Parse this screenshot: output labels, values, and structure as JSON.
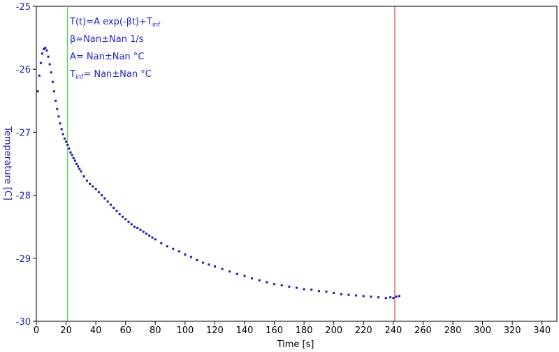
{
  "chart_data": {
    "type": "scatter",
    "title": "",
    "xlabel": "Time [s]",
    "ylabel": "Temperature [C]",
    "xlim": [
      0,
      350
    ],
    "ylim": [
      -30,
      -25
    ],
    "x_ticks": [
      0,
      20,
      40,
      60,
      80,
      100,
      120,
      140,
      160,
      180,
      200,
      220,
      240,
      260,
      280,
      300,
      320,
      340
    ],
    "y_ticks": [
      -25,
      -26,
      -27,
      -28,
      -29,
      -30
    ],
    "grid": false,
    "legend": "none",
    "series": [
      {
        "color": "#1a1aa8",
        "x": [
          1,
          2,
          3,
          4,
          5,
          6,
          7,
          8,
          9,
          10,
          11,
          12,
          13,
          14,
          15,
          16,
          17,
          18,
          19,
          20,
          21,
          22,
          23,
          24,
          25,
          26,
          27,
          28,
          29,
          30,
          32,
          34,
          36,
          38,
          40,
          42,
          44,
          46,
          48,
          50,
          52,
          54,
          56,
          58,
          60,
          62,
          64,
          66,
          68,
          70,
          72,
          74,
          76,
          78,
          80,
          84,
          88,
          92,
          96,
          100,
          104,
          108,
          112,
          116,
          120,
          125,
          130,
          135,
          140,
          145,
          150,
          155,
          160,
          165,
          170,
          175,
          180,
          185,
          190,
          195,
          200,
          205,
          210,
          215,
          220,
          225,
          230,
          235,
          238,
          240,
          242,
          244
        ],
        "y": [
          -26.35,
          -26.1,
          -25.9,
          -25.75,
          -25.68,
          -25.66,
          -25.7,
          -25.8,
          -25.92,
          -26.05,
          -26.2,
          -26.35,
          -26.5,
          -26.63,
          -26.75,
          -26.86,
          -26.95,
          -27.03,
          -27.1,
          -27.15,
          -27.2,
          -27.26,
          -27.32,
          -27.36,
          -27.41,
          -27.45,
          -27.5,
          -27.54,
          -27.58,
          -27.62,
          -27.7,
          -27.77,
          -27.82,
          -27.86,
          -27.9,
          -27.95,
          -28.0,
          -28.05,
          -28.1,
          -28.15,
          -28.2,
          -28.25,
          -28.3,
          -28.34,
          -28.38,
          -28.42,
          -28.46,
          -28.5,
          -28.52,
          -28.55,
          -28.58,
          -28.61,
          -28.64,
          -28.67,
          -28.7,
          -28.76,
          -28.81,
          -28.85,
          -28.89,
          -28.94,
          -28.98,
          -29.03,
          -29.07,
          -29.1,
          -29.13,
          -29.17,
          -29.21,
          -29.25,
          -29.28,
          -29.32,
          -29.35,
          -29.38,
          -29.41,
          -29.43,
          -29.45,
          -29.47,
          -29.49,
          -29.5,
          -29.52,
          -29.53,
          -29.55,
          -29.57,
          -29.58,
          -29.59,
          -29.6,
          -29.61,
          -29.62,
          -29.63,
          -29.62,
          -29.63,
          -29.61,
          -29.6
        ]
      }
    ],
    "vlines": [
      {
        "x": 21,
        "color": "#22cc22"
      },
      {
        "x": 241,
        "color": "#cc2222"
      }
    ],
    "annotations": {
      "line1": "T(t)=A exp(-βt)+T",
      "line1_sub": "inf",
      "line2": "β=Nan±Nan 1/s",
      "line3": "A= Nan±Nan °C",
      "line4_pre": "T",
      "line4_sub": "inf",
      "line4_post": "= Nan±Nan °C"
    },
    "colors": {
      "axis": "#000000",
      "ylabel": "#2222aa",
      "xlabel": "#000000",
      "markers": "#1a1aa8"
    }
  }
}
